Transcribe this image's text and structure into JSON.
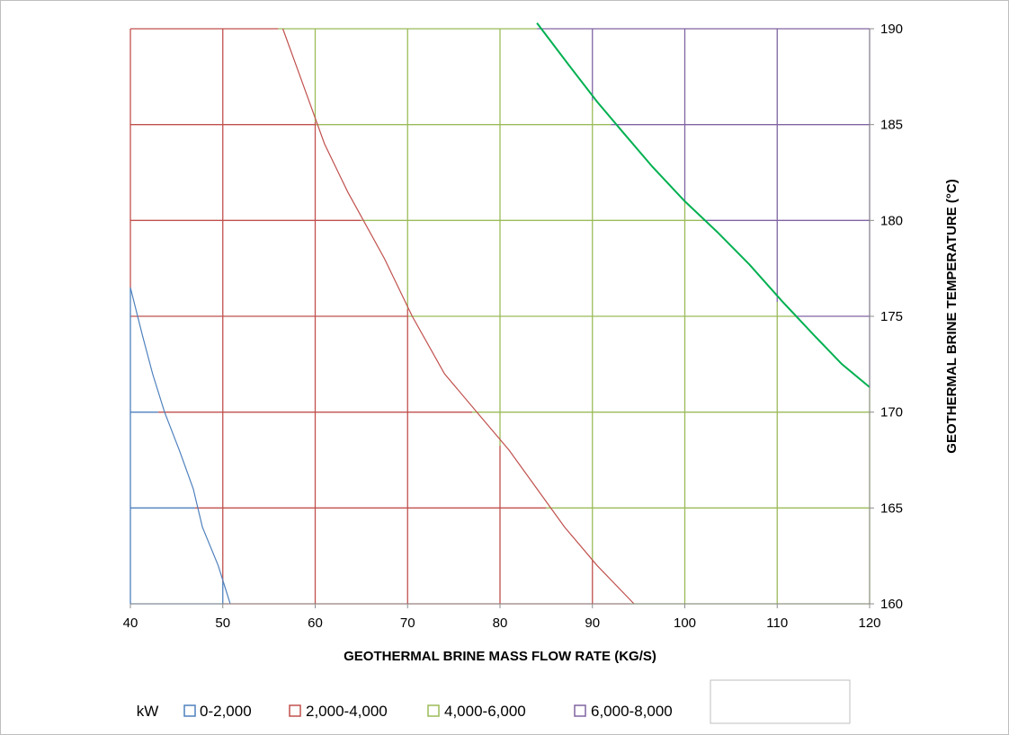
{
  "chart_data": {
    "type": "area",
    "title": "",
    "xlabel": "GEOTHERMAL BRINE MASS FLOW RATE (KG/S)",
    "ylabel": "GEOTHERMAL BRINE TEMPERATURE (°C)",
    "xlim": [
      40,
      120
    ],
    "ylim": [
      160,
      190
    ],
    "x_ticks": [
      40,
      50,
      60,
      70,
      80,
      90,
      100,
      110,
      120
    ],
    "y_ticks": [
      160,
      165,
      170,
      175,
      180,
      185,
      190
    ],
    "x_tick_labels": [
      "40",
      "50",
      "60",
      "70",
      "80",
      "90",
      "100",
      "110",
      "120"
    ],
    "y_tick_labels": [
      "160",
      "165",
      "170",
      "175",
      "180",
      "185",
      "190"
    ],
    "y_axis_side": "right",
    "grid": true,
    "legend_position": "bottom",
    "legend_title": "kW",
    "series": [
      {
        "name": "0-2,000",
        "color": "#4f81bd"
      },
      {
        "name": "2,000-4,000",
        "color": "#c0504d"
      },
      {
        "name": "4,000-6,000",
        "color": "#9bbb59"
      },
      {
        "name": "6,000-8,000",
        "color": "#8064a2"
      }
    ],
    "contours": [
      {
        "between": [
          "0-2,000",
          "2,000-4,000"
        ],
        "color": "#4f81bd",
        "points": [
          [
            50.8,
            160
          ],
          [
            49.5,
            162
          ],
          [
            47.8,
            164
          ],
          [
            46.8,
            166
          ],
          [
            45.3,
            168
          ],
          [
            43.7,
            170
          ],
          [
            42.4,
            172
          ],
          [
            41.3,
            174
          ],
          [
            40,
            176.5
          ]
        ]
      },
      {
        "between": [
          "2,000-4,000",
          "4,000-6,000"
        ],
        "color": "#c0504d",
        "points": [
          [
            94.5,
            160
          ],
          [
            90.5,
            162
          ],
          [
            87,
            164
          ],
          [
            84,
            166
          ],
          [
            81,
            168
          ],
          [
            77.5,
            170
          ],
          [
            74,
            172
          ],
          [
            70.5,
            175
          ],
          [
            67.5,
            178
          ],
          [
            63.5,
            181.5
          ],
          [
            61,
            184
          ],
          [
            59.5,
            186
          ],
          [
            58,
            188
          ],
          [
            56.5,
            190
          ]
        ]
      },
      {
        "between": [
          "4,000-6,000",
          "6,000-8,000"
        ],
        "color": "#00b050",
        "points": [
          [
            120,
            171.3
          ],
          [
            117,
            172.5
          ],
          [
            114,
            174
          ],
          [
            110.5,
            175.8
          ],
          [
            107,
            177.7
          ],
          [
            103.5,
            179.4
          ],
          [
            100,
            181
          ],
          [
            96.5,
            182.8
          ],
          [
            93.3,
            184.6
          ],
          [
            90.5,
            186.2
          ],
          [
            87.3,
            188.2
          ],
          [
            84,
            190.3
          ]
        ]
      }
    ]
  }
}
